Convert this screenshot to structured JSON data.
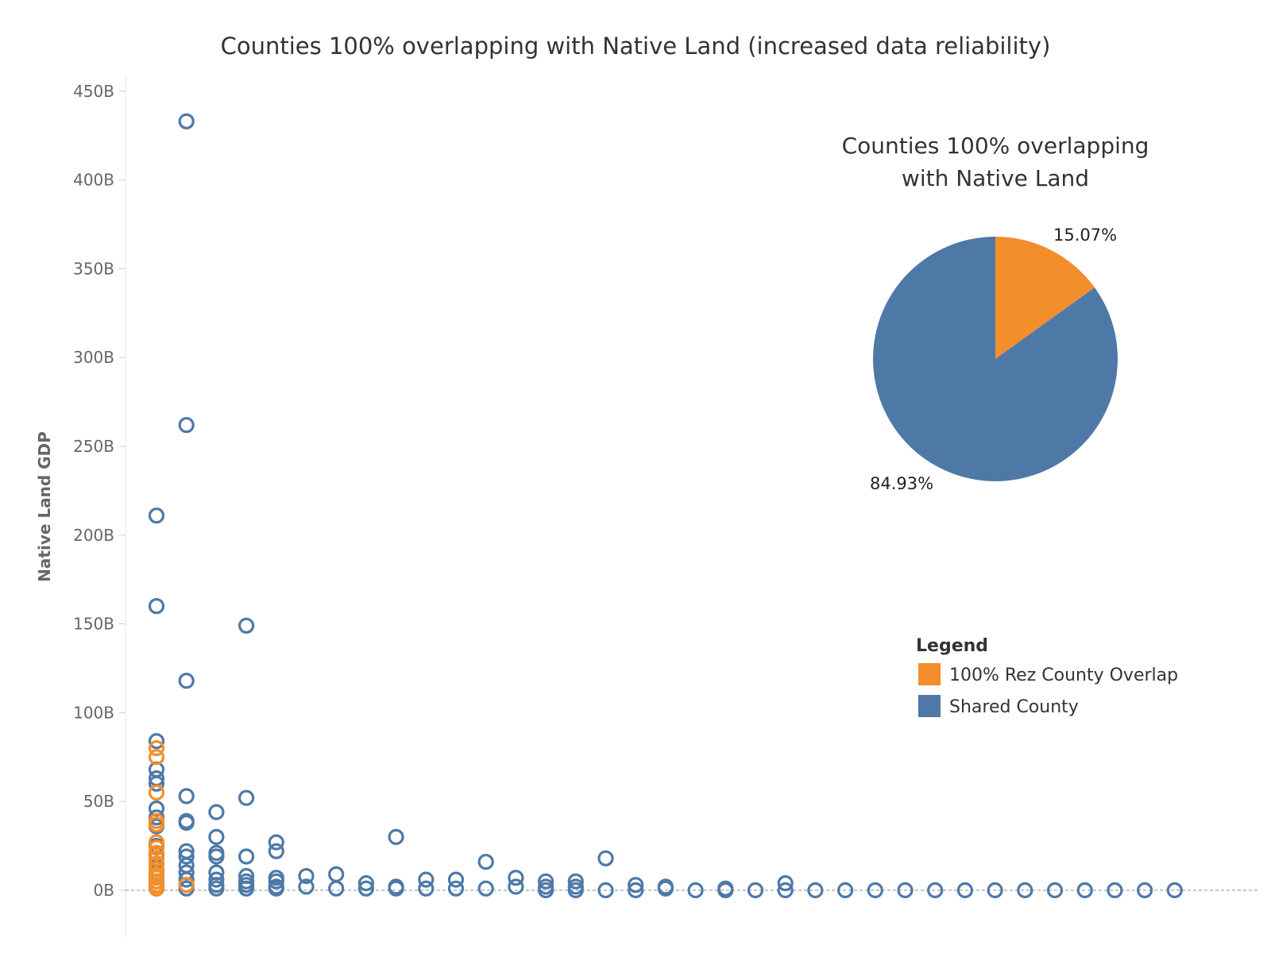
{
  "colors": {
    "rez": "#f28e2b",
    "shared": "#4e79a7",
    "axis": "#e6e6e6",
    "zero_line": "#9aa6b2"
  },
  "chart_data": [
    {
      "type": "scatter",
      "title": "Counties 100% overlapping with Native Land (increased data reliability)",
      "xlabel": "",
      "ylabel": "Native Land GDP",
      "ylim": [
        -10,
        455
      ],
      "y_ticks": [
        0,
        50,
        100,
        150,
        200,
        250,
        300,
        350,
        400,
        450
      ],
      "y_tick_labels": [
        "0B",
        "50B",
        "100B",
        "150B",
        "200B",
        "250B",
        "300B",
        "350B",
        "400B",
        "450B"
      ],
      "x_categories": 35,
      "x_axis_labels_shown": false,
      "grid": false,
      "marker": "hollow-circle",
      "series": [
        {
          "name": "Shared County",
          "color": "#4e79a7",
          "points": [
            [
              1,
              211
            ],
            [
              1,
              160
            ],
            [
              1,
              84
            ],
            [
              1,
              68
            ],
            [
              1,
              63
            ],
            [
              1,
              60
            ],
            [
              1,
              46
            ],
            [
              1,
              41
            ],
            [
              1,
              36
            ],
            [
              1,
              25
            ],
            [
              1,
              20
            ],
            [
              1,
              15
            ],
            [
              1,
              10
            ],
            [
              1,
              5
            ],
            [
              1,
              1
            ],
            [
              2,
              433
            ],
            [
              2,
              262
            ],
            [
              2,
              118
            ],
            [
              2,
              53
            ],
            [
              2,
              39
            ],
            [
              2,
              38
            ],
            [
              2,
              22
            ],
            [
              2,
              19
            ],
            [
              2,
              14
            ],
            [
              2,
              10
            ],
            [
              2,
              6
            ],
            [
              2,
              3
            ],
            [
              2,
              1
            ],
            [
              3,
              44
            ],
            [
              3,
              30
            ],
            [
              3,
              21
            ],
            [
              3,
              19
            ],
            [
              3,
              10
            ],
            [
              3,
              6
            ],
            [
              3,
              3
            ],
            [
              3,
              1
            ],
            [
              4,
              149
            ],
            [
              4,
              52
            ],
            [
              4,
              19
            ],
            [
              4,
              8
            ],
            [
              4,
              5
            ],
            [
              4,
              3
            ],
            [
              4,
              1
            ],
            [
              5,
              27
            ],
            [
              5,
              22
            ],
            [
              5,
              7
            ],
            [
              5,
              5
            ],
            [
              5,
              2
            ],
            [
              5,
              1
            ],
            [
              6,
              8
            ],
            [
              6,
              2
            ],
            [
              7,
              9
            ],
            [
              7,
              1
            ],
            [
              8,
              4
            ],
            [
              8,
              1
            ],
            [
              9,
              30
            ],
            [
              9,
              2
            ],
            [
              9,
              1
            ],
            [
              10,
              6
            ],
            [
              10,
              1
            ],
            [
              11,
              6
            ],
            [
              11,
              1
            ],
            [
              12,
              16
            ],
            [
              12,
              1
            ],
            [
              13,
              7
            ],
            [
              13,
              2
            ],
            [
              14,
              5
            ],
            [
              14,
              2
            ],
            [
              14,
              0
            ],
            [
              15,
              5
            ],
            [
              15,
              2
            ],
            [
              15,
              0
            ],
            [
              16,
              18
            ],
            [
              16,
              0
            ],
            [
              17,
              3
            ],
            [
              17,
              0
            ],
            [
              18,
              2
            ],
            [
              18,
              1
            ],
            [
              19,
              0
            ],
            [
              20,
              1
            ],
            [
              20,
              0
            ],
            [
              21,
              0
            ],
            [
              22,
              4
            ],
            [
              22,
              0
            ],
            [
              23,
              0
            ],
            [
              24,
              0
            ],
            [
              25,
              0
            ],
            [
              26,
              0
            ],
            [
              27,
              0
            ],
            [
              28,
              0
            ],
            [
              29,
              0
            ],
            [
              30,
              0
            ],
            [
              31,
              0
            ],
            [
              32,
              0
            ],
            [
              33,
              0
            ],
            [
              34,
              0
            ],
            [
              35,
              0
            ]
          ]
        },
        {
          "name": "100% Rez County Overlap",
          "color": "#f28e2b",
          "points": [
            [
              1,
              80
            ],
            [
              1,
              75
            ],
            [
              1,
              55
            ],
            [
              1,
              39
            ],
            [
              1,
              37
            ],
            [
              1,
              27
            ],
            [
              1,
              24
            ],
            [
              1,
              21
            ],
            [
              1,
              18
            ],
            [
              1,
              15
            ],
            [
              1,
              12
            ],
            [
              1,
              9
            ],
            [
              1,
              7
            ],
            [
              1,
              5
            ],
            [
              1,
              3
            ],
            [
              1,
              2
            ],
            [
              1,
              1
            ],
            [
              2,
              3
            ]
          ]
        }
      ]
    },
    {
      "type": "pie",
      "title_lines": [
        "Counties 100% overlapping",
        "with Native Land"
      ],
      "slices": [
        {
          "name": "100% Rez County Overlap",
          "value": 15.07,
          "label": "15.07%",
          "color": "#f28e2b"
        },
        {
          "name": "Shared County",
          "value": 84.93,
          "label": "84.93%",
          "color": "#4e79a7"
        }
      ]
    }
  ],
  "legend": {
    "title": "Legend",
    "placement": "right",
    "items": [
      {
        "label": "100% Rez County Overlap",
        "color": "#f28e2b"
      },
      {
        "label": "Shared County",
        "color": "#4e79a7"
      }
    ]
  }
}
